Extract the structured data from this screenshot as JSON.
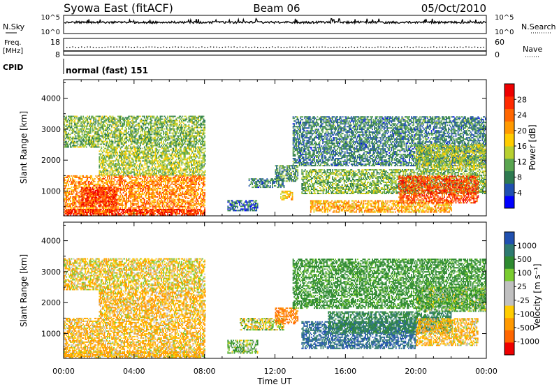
{
  "header": {
    "station": "Syowa East (fitACF)",
    "beam": "Beam 06",
    "date": "05/Oct/2010"
  },
  "panels": {
    "nsky": {
      "left_label": "N.Sky",
      "right_label": "N.Search",
      "left_ticks": [
        "10^5",
        "10^0"
      ],
      "right_ticks": [
        "10^5",
        "10^0"
      ]
    },
    "freq": {
      "left_label_1": "Freq.",
      "left_label_2": "[MHz]",
      "right_label": "Nave",
      "left_ticks": [
        "18",
        "8"
      ],
      "right_ticks": [
        "60",
        "0"
      ]
    },
    "cpid": {
      "label": "CPID",
      "value": "normal (fast) 151"
    }
  },
  "x_axis": {
    "label": "Time UT",
    "ticks": [
      "00:00",
      "04:00",
      "08:00",
      "12:00",
      "16:00",
      "20:00",
      "00:00"
    ]
  },
  "colors": {
    "power": [
      "#0000ff",
      "#2050b0",
      "#2e7a50",
      "#5aa550",
      "#b8d030",
      "#ffcc00",
      "#ff9900",
      "#ff6600",
      "#ff2a00",
      "#ee0000"
    ],
    "velocity": [
      "#ee0000",
      "#ff6600",
      "#ff9900",
      "#ffcc00",
      "#c0c0c0",
      "#c0c0c0",
      "#7acc30",
      "#2e8a30",
      "#2e7a70",
      "#2050b0"
    ]
  },
  "chart_data": [
    {
      "type": "heatmap",
      "name": "power",
      "ylabel": "Slant Range [km]",
      "xlabel": "Time UT",
      "xlim": [
        0,
        24
      ],
      "ylim": [
        200,
        4600
      ],
      "y_ticks": [
        1000,
        2000,
        3000,
        4000
      ],
      "colorbar_label": "Power [dB]",
      "colorbar_ticks": [
        4,
        8,
        12,
        16,
        20,
        24,
        28
      ],
      "colorbar_range": [
        0,
        32
      ],
      "regions": [
        {
          "t0": 0.0,
          "t1": 8.0,
          "r0": 250,
          "r1": 1500,
          "value": 22
        },
        {
          "t0": 1.0,
          "t1": 3.0,
          "r0": 500,
          "r1": 1100,
          "value": 28
        },
        {
          "t0": 0.0,
          "t1": 8.0,
          "r0": 200,
          "r1": 400,
          "value": 28
        },
        {
          "t0": 2.0,
          "t1": 8.0,
          "r0": 1500,
          "r1": 2400,
          "value": 14
        },
        {
          "t0": 0.0,
          "t1": 8.0,
          "r0": 2400,
          "r1": 3400,
          "value": 12
        },
        {
          "t0": 9.3,
          "t1": 11.0,
          "r0": 350,
          "r1": 700,
          "value": 6
        },
        {
          "t0": 10.5,
          "t1": 12.5,
          "r0": 1100,
          "r1": 1400,
          "value": 8
        },
        {
          "t0": 12.0,
          "t1": 13.3,
          "r0": 1300,
          "r1": 1800,
          "value": 10
        },
        {
          "t0": 12.3,
          "t1": 13.0,
          "r0": 700,
          "r1": 1000,
          "value": 18
        },
        {
          "t0": 13.5,
          "t1": 24.0,
          "r0": 900,
          "r1": 1700,
          "value": 12
        },
        {
          "t0": 14.0,
          "t1": 22.0,
          "r0": 300,
          "r1": 700,
          "value": 20
        },
        {
          "t0": 19.0,
          "t1": 23.5,
          "r0": 600,
          "r1": 1500,
          "value": 26
        },
        {
          "t0": 13.0,
          "t1": 24.0,
          "r0": 1800,
          "r1": 3400,
          "value": 8
        },
        {
          "t0": 20.0,
          "t1": 24.0,
          "r0": 1700,
          "r1": 2500,
          "value": 14
        }
      ]
    },
    {
      "type": "heatmap",
      "name": "velocity",
      "ylabel": "Slant Range [km]",
      "xlabel": "Time UT",
      "xlim": [
        0,
        24
      ],
      "ylim": [
        200,
        4600
      ],
      "y_ticks": [
        1000,
        2000,
        3000,
        4000
      ],
      "colorbar_label": "Velocity [m s⁻¹]",
      "colorbar_ticks": [
        1000,
        500,
        100,
        25,
        -25,
        -100,
        -500,
        -1000
      ],
      "regions": [
        {
          "t0": 0.0,
          "t1": 8.0,
          "r0": 250,
          "r1": 1500,
          "value": -100
        },
        {
          "t0": 0.0,
          "t1": 8.0,
          "r0": 200,
          "r1": 400,
          "value": -100
        },
        {
          "t0": 2.0,
          "t1": 8.0,
          "r0": 1500,
          "r1": 2400,
          "value": -100
        },
        {
          "t0": 0.0,
          "t1": 8.0,
          "r0": 2400,
          "r1": 3400,
          "value": -50
        },
        {
          "t0": 9.3,
          "t1": 11.0,
          "r0": 350,
          "r1": 800,
          "value": 100
        },
        {
          "t0": 10.0,
          "t1": 12.5,
          "r0": 1100,
          "r1": 1500,
          "value": 0
        },
        {
          "t0": 12.0,
          "t1": 13.3,
          "r0": 1300,
          "r1": 1800,
          "value": -500
        },
        {
          "t0": 13.5,
          "t1": 20.0,
          "r0": 500,
          "r1": 1400,
          "value": 1000
        },
        {
          "t0": 15.0,
          "t1": 22.0,
          "r0": 1000,
          "r1": 1700,
          "value": 500
        },
        {
          "t0": 20.0,
          "t1": 23.5,
          "r0": 600,
          "r1": 1500,
          "value": -100
        },
        {
          "t0": 13.0,
          "t1": 24.0,
          "r0": 1800,
          "r1": 3400,
          "value": 200
        },
        {
          "t0": 20.0,
          "t1": 24.0,
          "r0": 1700,
          "r1": 2500,
          "value": 100
        }
      ]
    }
  ]
}
